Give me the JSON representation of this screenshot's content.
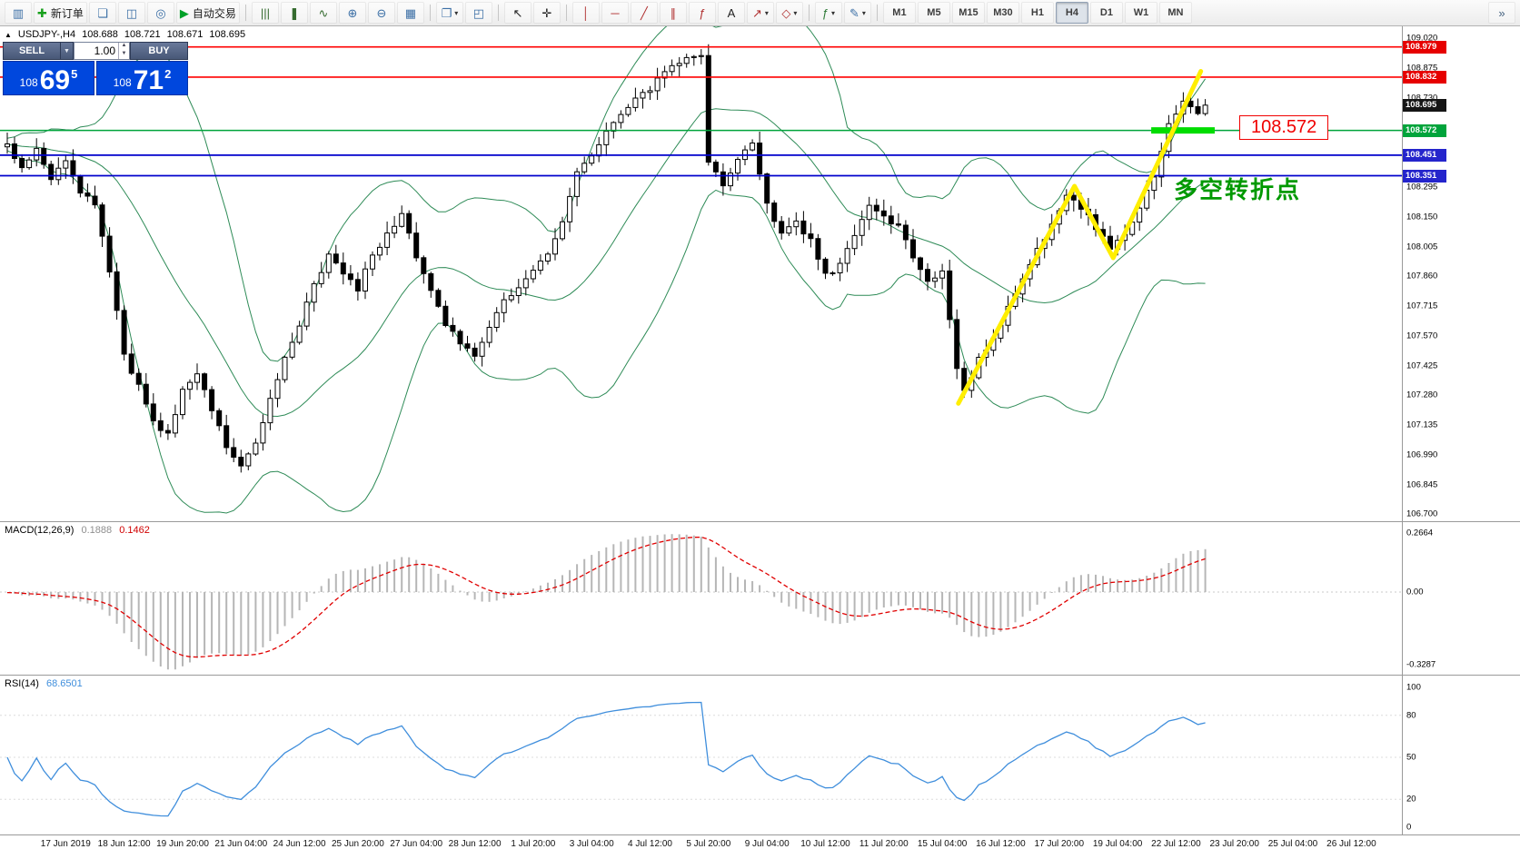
{
  "header": {
    "symbol_marker": "▲",
    "symbol_tf": "USDJPY-,H4",
    "open": "108.688",
    "high": "108.721",
    "low": "108.671",
    "close": "108.695"
  },
  "order_panel": {
    "sell_label": "SELL",
    "buy_label": "BUY",
    "volume": "1.00",
    "dropdown_icon": "▼",
    "spin_up": "▲",
    "spin_down": "▼",
    "sell_price": {
      "int": "108",
      "big": "69",
      "sup": "5"
    },
    "buy_price": {
      "int": "108",
      "big": "71",
      "sup": "2"
    }
  },
  "toolbar": {
    "groups": [
      {
        "items": [
          {
            "name": "chart-window-icon",
            "glyph": "▥",
            "color": "#3a6ea5"
          },
          {
            "name": "new-order-button",
            "glyph": "✚",
            "color": "#18a01c",
            "label": "新订单"
          },
          {
            "name": "charts-list-icon",
            "glyph": "❏",
            "color": "#3a6ea5"
          },
          {
            "name": "market-watch-icon",
            "glyph": "◫",
            "color": "#3a6ea5"
          },
          {
            "name": "navigator-icon",
            "glyph": "◎",
            "color": "#3a6ea5"
          },
          {
            "name": "auto-trading-button",
            "glyph": "▶",
            "color": "#00a028",
            "label": "自动交易"
          }
        ]
      },
      {
        "items": [
          {
            "name": "bar-chart-icon",
            "glyph": "|||",
            "color": "#356b2f"
          },
          {
            "name": "candlestick-chart-icon",
            "glyph": "❚",
            "color": "#356b2f"
          },
          {
            "name": "line-chart-icon",
            "glyph": "∿",
            "color": "#356b2f"
          },
          {
            "name": "zoom-in-icon",
            "glyph": "⊕",
            "color": "#3a6ea5"
          },
          {
            "name": "zoom-out-icon",
            "glyph": "⊖",
            "color": "#3a6ea5"
          },
          {
            "name": "grid-icon",
            "glyph": "▦",
            "color": "#3a6ea5"
          }
        ]
      },
      {
        "items": [
          {
            "name": "new-chart-icon",
            "glyph": "❐",
            "color": "#3a6ea5",
            "dropdown": true
          },
          {
            "name": "tile-windows-icon",
            "glyph": "◰",
            "color": "#3a6ea5"
          }
        ]
      },
      {
        "items": [
          {
            "name": "cursor-icon",
            "glyph": "↖",
            "color": "#222222"
          },
          {
            "name": "crosshair-icon",
            "glyph": "✛",
            "color": "#222222"
          }
        ]
      },
      {
        "items": [
          {
            "name": "vertical-line-icon",
            "glyph": "│",
            "color": "#b03030"
          },
          {
            "name": "horizontal-line-icon",
            "glyph": "─",
            "color": "#b03030"
          },
          {
            "name": "trendline-icon",
            "glyph": "╱",
            "color": "#b03030"
          },
          {
            "name": "channel-icon",
            "glyph": "∥",
            "color": "#b03030"
          },
          {
            "name": "fibonacci-icon",
            "glyph": "ƒ",
            "color": "#b03030"
          },
          {
            "name": "text-icon",
            "glyph": "A",
            "color": "#222222"
          },
          {
            "name": "arrow-icon",
            "glyph": "↗",
            "color": "#b03030",
            "dropdown": true
          },
          {
            "name": "shapes-icon",
            "glyph": "◇",
            "color": "#b03030",
            "dropdown": true
          }
        ]
      },
      {
        "items": [
          {
            "name": "indicators-icon",
            "glyph": "ƒ",
            "color": "#2f7a38",
            "dropdown": true
          },
          {
            "name": "objects-icon",
            "glyph": "✎",
            "color": "#3a6ea5",
            "dropdown": true
          }
        ]
      }
    ],
    "timeframes": [
      {
        "label": "M1"
      },
      {
        "label": "M5"
      },
      {
        "label": "M15"
      },
      {
        "label": "M30"
      },
      {
        "label": "H1"
      },
      {
        "label": "H4",
        "active": true
      },
      {
        "label": "D1"
      },
      {
        "label": "W1"
      },
      {
        "label": "MN"
      }
    ],
    "overflow_icon": "»"
  },
  "indicator_labels": {
    "macd": {
      "name": "MACD(12,26,9)",
      "value_main": "0.1888",
      "value_signal": "0.1462"
    },
    "rsi": {
      "name": "RSI(14)",
      "value": "68.6501"
    }
  },
  "chart_data": {
    "type": "candlestick",
    "symbol": "USDJPY-",
    "timeframe": "H4",
    "ohlc_current": {
      "open": 108.688,
      "high": 108.721,
      "low": 108.671,
      "close": 108.695
    },
    "candle_count": 165,
    "close_waypoints": [
      [
        0,
        108.5
      ],
      [
        2,
        108.4
      ],
      [
        4,
        108.48
      ],
      [
        6,
        108.34
      ],
      [
        8,
        108.42
      ],
      [
        10,
        108.26
      ],
      [
        12,
        108.22
      ],
      [
        14,
        107.88
      ],
      [
        16,
        107.48
      ],
      [
        18,
        107.32
      ],
      [
        20,
        107.14
      ],
      [
        22,
        107.1
      ],
      [
        24,
        107.3
      ],
      [
        26,
        107.38
      ],
      [
        28,
        107.22
      ],
      [
        30,
        107.04
      ],
      [
        32,
        106.93
      ],
      [
        34,
        107.06
      ],
      [
        36,
        107.26
      ],
      [
        38,
        107.46
      ],
      [
        40,
        107.62
      ],
      [
        42,
        107.82
      ],
      [
        44,
        107.96
      ],
      [
        46,
        107.86
      ],
      [
        48,
        107.8
      ],
      [
        50,
        107.96
      ],
      [
        52,
        108.06
      ],
      [
        54,
        108.16
      ],
      [
        56,
        107.96
      ],
      [
        58,
        107.8
      ],
      [
        60,
        107.62
      ],
      [
        62,
        107.54
      ],
      [
        64,
        107.48
      ],
      [
        66,
        107.62
      ],
      [
        68,
        107.74
      ],
      [
        70,
        107.8
      ],
      [
        72,
        107.88
      ],
      [
        74,
        107.96
      ],
      [
        76,
        108.12
      ],
      [
        78,
        108.36
      ],
      [
        80,
        108.46
      ],
      [
        82,
        108.56
      ],
      [
        84,
        108.66
      ],
      [
        86,
        108.72
      ],
      [
        88,
        108.78
      ],
      [
        90,
        108.86
      ],
      [
        92,
        108.9
      ],
      [
        94,
        108.93
      ],
      [
        95,
        108.95
      ],
      [
        96,
        108.42
      ],
      [
        98,
        108.3
      ],
      [
        100,
        108.44
      ],
      [
        102,
        108.5
      ],
      [
        104,
        108.22
      ],
      [
        106,
        108.06
      ],
      [
        108,
        108.12
      ],
      [
        110,
        108.04
      ],
      [
        112,
        107.86
      ],
      [
        114,
        107.92
      ],
      [
        116,
        108.06
      ],
      [
        118,
        108.22
      ],
      [
        120,
        108.16
      ],
      [
        122,
        108.1
      ],
      [
        124,
        107.96
      ],
      [
        126,
        107.82
      ],
      [
        128,
        107.9
      ],
      [
        130,
        107.42
      ],
      [
        131,
        107.3
      ],
      [
        133,
        107.46
      ],
      [
        135,
        107.56
      ],
      [
        137,
        107.7
      ],
      [
        139,
        107.86
      ],
      [
        141,
        108.0
      ],
      [
        143,
        108.1
      ],
      [
        145,
        108.26
      ],
      [
        147,
        108.2
      ],
      [
        149,
        108.1
      ],
      [
        151,
        107.99
      ],
      [
        153,
        108.08
      ],
      [
        155,
        108.2
      ],
      [
        157,
        108.36
      ],
      [
        159,
        108.6
      ],
      [
        161,
        108.72
      ],
      [
        163,
        108.66
      ],
      [
        164,
        108.695
      ]
    ],
    "indicators": [
      {
        "type": "bollinger",
        "period": 20,
        "deviation": 2,
        "color": "#2e8b57"
      },
      {
        "type": "macd",
        "fast": 12,
        "slow": 26,
        "signal": 9
      },
      {
        "type": "rsi",
        "period": 14
      }
    ],
    "levels": [
      {
        "price": 108.979,
        "color": "#ff0000",
        "width": 1.6
      },
      {
        "price": 108.832,
        "color": "#ff0000",
        "width": 1.6
      },
      {
        "price": 108.572,
        "color": "#00a43b",
        "width": 1.5
      },
      {
        "price": 108.451,
        "color": "#0000cc",
        "width": 1.8
      },
      {
        "price": 108.351,
        "color": "#0000cc",
        "width": 1.8
      }
    ],
    "highlight_segment": {
      "price": 108.572,
      "i_from": 156.6,
      "i_to": 165.3,
      "color": "#00dd00"
    },
    "zigzag": {
      "color": "#ffee00",
      "points": [
        [
          130.2,
          107.24
        ],
        [
          146.1,
          108.3
        ],
        [
          151.4,
          107.95
        ],
        [
          163.4,
          108.86
        ]
      ]
    },
    "annotations": {
      "level_box": {
        "text": "108.572"
      },
      "turning_point": {
        "text": "多空转折点"
      }
    },
    "price_scale_labels": [
      109.02,
      108.875,
      108.73,
      108.295,
      108.15,
      108.005,
      107.86,
      107.715,
      107.57,
      107.425,
      107.28,
      107.135,
      106.99,
      106.845,
      106.7
    ],
    "price_badges": [
      {
        "price": 108.979,
        "color": "#e60000"
      },
      {
        "price": 108.832,
        "color": "#e60000"
      },
      {
        "price": 108.695,
        "color": "#151515"
      },
      {
        "price": 108.572,
        "color": "#00a43b"
      },
      {
        "price": 108.451,
        "color": "#2525cc"
      },
      {
        "price": 108.351,
        "color": "#2525cc"
      }
    ],
    "macd_scale": [
      {
        "label": "0.2664",
        "value": 0.2664
      },
      {
        "label": "0.00",
        "value": 0
      },
      {
        "label": "-0.3287",
        "value": -0.3287
      }
    ],
    "rsi_scale": [
      100,
      80,
      50,
      20,
      0
    ],
    "time_labels": [
      "17 Jun 2019",
      "18 Jun 12:00",
      "19 Jun 20:00",
      "21 Jun 04:00",
      "24 Jun 12:00",
      "25 Jun 20:00",
      "27 Jun 04:00",
      "28 Jun 12:00",
      "1 Jul 20:00",
      "3 Jul 04:00",
      "4 Jul 12:00",
      "5 Jul 20:00",
      "9 Jul 04:00",
      "10 Jul 12:00",
      "11 Jul 20:00",
      "15 Jul 04:00",
      "16 Jul 12:00",
      "17 Jul 20:00",
      "19 Jul 04:00",
      "22 Jul 12:00",
      "23 Jul 20:00",
      "25 Jul 04:00",
      "26 Jul 12:00"
    ]
  }
}
